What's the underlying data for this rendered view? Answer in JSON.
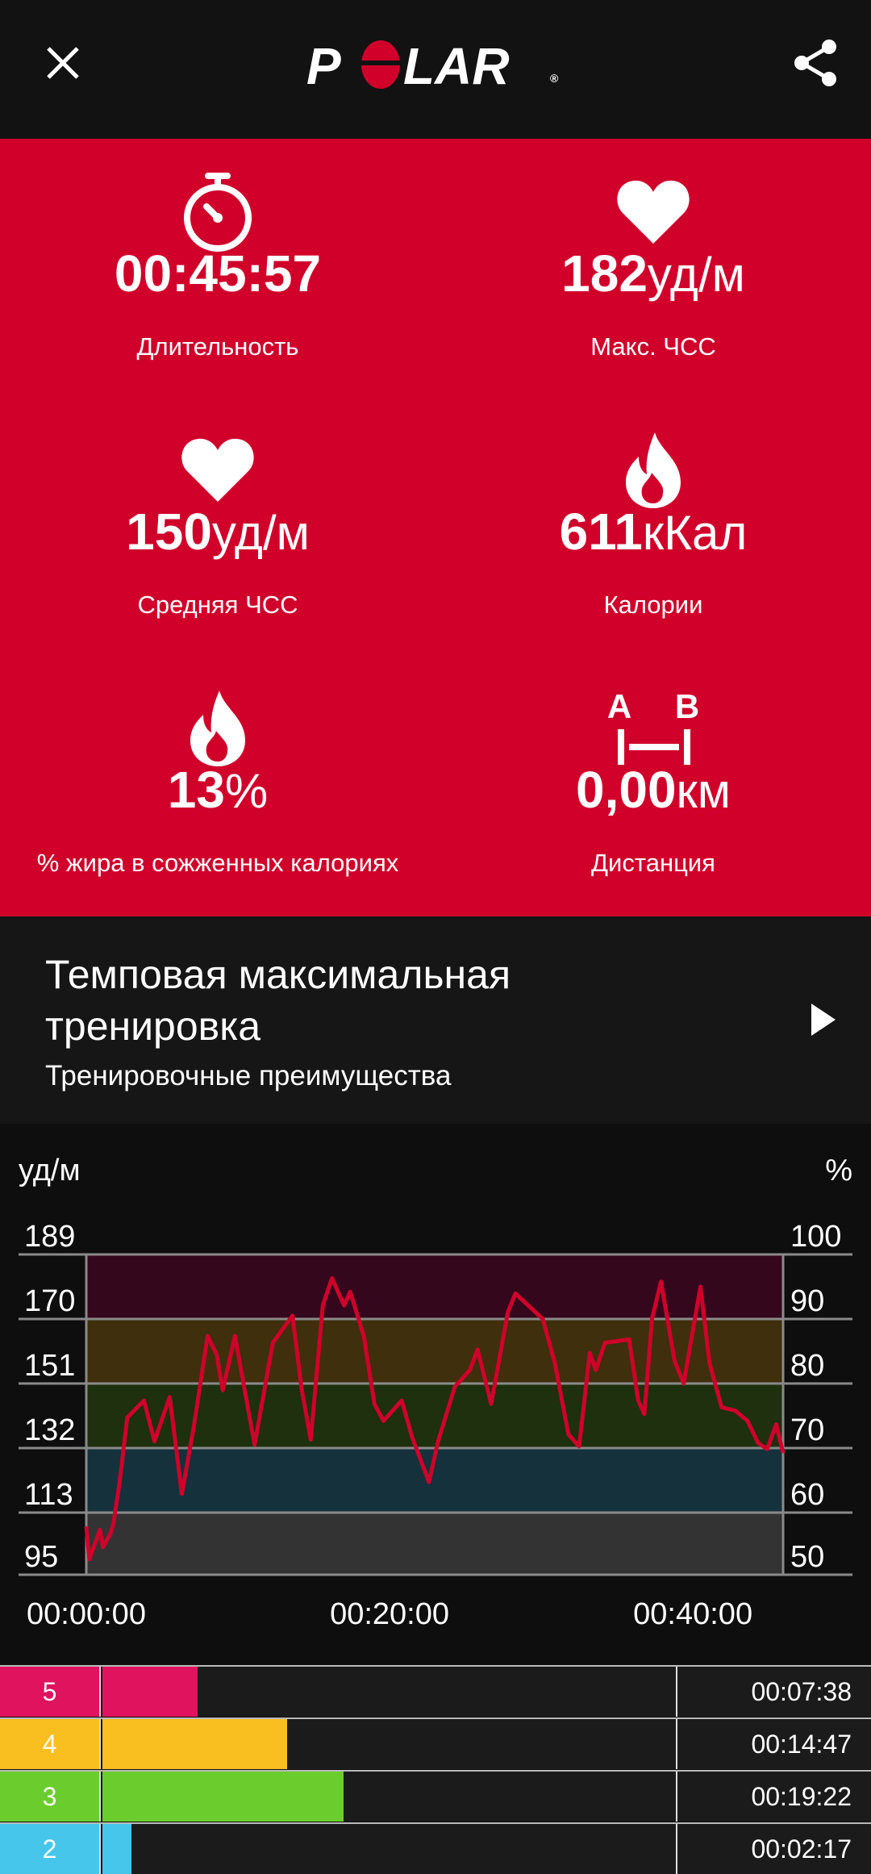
{
  "header": {
    "logo": "POLAR",
    "close_icon": "close-icon",
    "share_icon": "share-icon"
  },
  "colors": {
    "accent": "#d0002a",
    "zone5": "#e0135e",
    "zone4": "#f9bf21",
    "zone3": "#6bcd2d",
    "zone2": "#45c6ea",
    "line": "#d0002a"
  },
  "stats": [
    {
      "icon": "stopwatch-icon",
      "value": "00:45:57",
      "unit": "",
      "label": "Длительность"
    },
    {
      "icon": "heart-icon",
      "value": "182",
      "unit": "уд/м",
      "label": "Макс. ЧСС"
    },
    {
      "icon": "heart-icon",
      "value": "150",
      "unit": "уд/м",
      "label": "Средняя ЧСС"
    },
    {
      "icon": "flame-icon",
      "value": "611",
      "unit": "кКал",
      "label": "Калории"
    },
    {
      "icon": "flame-icon",
      "value": "13",
      "unit": "%",
      "label": "% жира в сожженных калориях"
    },
    {
      "icon": "distance-icon",
      "value": "0,00",
      "unit": "км",
      "label": "Дистанция",
      "icon_a": "A",
      "icon_b": "B"
    }
  ],
  "workout": {
    "title_line1": "Темповая максимальная",
    "title_line2": "тренировка",
    "subtitle": "Тренировочные преимущества"
  },
  "chart_data": {
    "type": "line",
    "ylabel_left": "уд/м",
    "ylabel_right": "%",
    "yticks_left": [
      "189",
      "170",
      "151",
      "132",
      "113",
      "95"
    ],
    "yticks_right": [
      "100",
      "90",
      "80",
      "70",
      "60",
      "50"
    ],
    "xticks": [
      "00:00:00",
      "00:20:00",
      "00:40:00"
    ],
    "ylim": [
      95,
      189
    ],
    "xlim_minutes": [
      0,
      45.95
    ],
    "zones": [
      {
        "from": 170,
        "to": 189,
        "color": "#35071c"
      },
      {
        "from": 151,
        "to": 170,
        "color": "#3f2f0c"
      },
      {
        "from": 132,
        "to": 151,
        "color": "#1e300e"
      },
      {
        "from": 113,
        "to": 132,
        "color": "#15313b"
      },
      {
        "from": 95,
        "to": 113,
        "color": "#333333"
      }
    ],
    "series": [
      {
        "x_minutes": [
          0,
          0.2,
          0.9,
          1.1,
          1.6,
          1.8,
          2.2,
          2.7,
          3.8,
          4.5,
          5.5,
          6.3,
          7.1,
          8.0,
          8.6,
          9.0,
          9.8,
          11.1,
          12.3,
          13.6,
          14.2,
          14.8,
          15.6,
          16.2,
          17.0,
          17.4,
          18.3,
          19.0,
          19.6,
          20.8,
          21.5,
          22.6,
          23.2,
          24.3,
          25.3,
          25.8,
          26.7,
          27.8,
          28.3,
          30.1,
          30.9,
          31.8,
          32.5,
          33.2,
          33.6,
          34.2,
          35.8,
          36.4,
          36.8,
          37.3,
          37.9,
          38.8,
          39.4,
          40.5,
          41.1,
          41.9,
          42.8,
          43.6,
          44.3,
          44.9,
          45.5,
          45.95
        ],
        "bpm": [
          109,
          99.5,
          108,
          103,
          107,
          110,
          122,
          141,
          146,
          134,
          147,
          118.5,
          138.5,
          165,
          159.5,
          149,
          165,
          133,
          163,
          171,
          149.5,
          134.5,
          174,
          182,
          174,
          178,
          165,
          145,
          140,
          146,
          135,
          122,
          134,
          150,
          155,
          161,
          145,
          172,
          177.5,
          170,
          157,
          136,
          132.5,
          160,
          155,
          163,
          164,
          146,
          142,
          170,
          181,
          157.5,
          151,
          179.5,
          157,
          144,
          143,
          140,
          133.5,
          131.7,
          139,
          130.5
        ]
      }
    ]
  },
  "zones": [
    {
      "zone": "5",
      "time": "00:07:38",
      "fraction": 0.166,
      "color": "#e0135e"
    },
    {
      "zone": "4",
      "time": "00:14:47",
      "fraction": 0.322,
      "color": "#f9bf21"
    },
    {
      "zone": "3",
      "time": "00:19:22",
      "fraction": 0.421,
      "color": "#6bcd2d"
    },
    {
      "zone": "2",
      "time": "00:02:17",
      "fraction": 0.05,
      "color": "#45c6ea"
    }
  ]
}
